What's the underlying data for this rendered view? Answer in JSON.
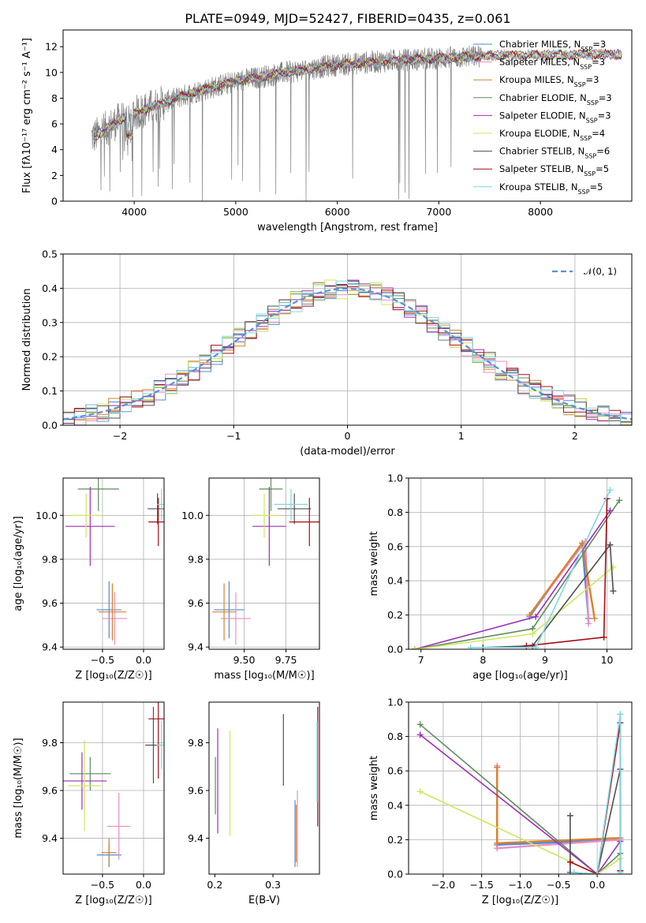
{
  "figure": {
    "title": "PLATE=0949, MJD=52427, FIBERID=0435, z=0.061"
  },
  "colors": {
    "chabrier_miles": "#4f8ad6",
    "salpeter_miles": "#e98ec2",
    "kroupa_miles": "#d9822b",
    "chabrier_elodie": "#5e8c5e",
    "salpeter_elodie": "#9b2fb5",
    "kroupa_elodie": "#cfe65a",
    "chabrier_stelib": "#505050",
    "salpeter_stelib": "#a50f15",
    "kroupa_stelib": "#7fd6e6",
    "data": "#808080",
    "normal": "#5b8fd6"
  },
  "chart_data": [
    {
      "id": "spectrum",
      "type": "line",
      "xlabel": "wavelength [Angstrom, rest frame]",
      "ylabel": "Flux [fλ10⁻¹⁷ erg cm⁻² s⁻¹ A⁻¹]",
      "xlim": [
        3300,
        8900
      ],
      "ylim": [
        0,
        13.3
      ],
      "xticks": [
        4000,
        5000,
        6000,
        7000,
        8000
      ],
      "yticks": [
        0,
        2,
        4,
        6,
        8,
        10,
        12
      ],
      "grid": false,
      "legend_loc": "right",
      "continuum_x": [
        3600,
        3900,
        4200,
        4600,
        5000,
        5500,
        6000,
        6500,
        7000,
        7500,
        8000,
        8500,
        8800
      ],
      "continuum_y": [
        5.0,
        6.5,
        7.4,
        8.5,
        9.3,
        10.0,
        10.6,
        10.9,
        11.1,
        11.3,
        11.35,
        11.4,
        11.4
      ],
      "series": [
        {
          "name": "Chabrier MILES, N",
          "sub": "SSP",
          "n": "=3",
          "color_key": "chabrier_miles"
        },
        {
          "name": "Salpeter MILES, N",
          "sub": "SSP",
          "n": "=3",
          "color_key": "salpeter_miles"
        },
        {
          "name": "Kroupa MILES, N",
          "sub": "SSP",
          "n": "=3",
          "color_key": "kroupa_miles"
        },
        {
          "name": "Chabrier ELODIE, N",
          "sub": "SSP",
          "n": "=3",
          "color_key": "chabrier_elodie"
        },
        {
          "name": "Salpeter ELODIE, N",
          "sub": "SSP",
          "n": "=3",
          "color_key": "salpeter_elodie"
        },
        {
          "name": "Kroupa ELODIE, N",
          "sub": "SSP",
          "n": "=4",
          "color_key": "kroupa_elodie"
        },
        {
          "name": "Chabrier STELIB, N",
          "sub": "SSP",
          "n": "=6",
          "color_key": "chabrier_stelib"
        },
        {
          "name": "Salpeter STELIB, N",
          "sub": "SSP",
          "n": "=5",
          "color_key": "salpeter_stelib"
        },
        {
          "name": "Kroupa STELIB, N",
          "sub": "SSP",
          "n": "=5",
          "color_key": "kroupa_stelib"
        }
      ]
    },
    {
      "id": "residuals",
      "type": "line",
      "xlabel": "(data-model)/error",
      "ylabel": "Normed distribution",
      "xlim": [
        -2.5,
        2.5
      ],
      "ylim": [
        0,
        0.5
      ],
      "xticks": [
        -2,
        -1,
        0,
        1,
        2
      ],
      "yticks": [
        0.0,
        0.1,
        0.2,
        0.3,
        0.4,
        0.5
      ],
      "grid": true,
      "legend_loc": "top-right",
      "normal_label": "𝒩(0, 1)",
      "bin_width": 0.1
    },
    {
      "id": "age_vs_Z",
      "type": "scatter",
      "xlabel": "Z [log₁₀(Z/Z☉)]",
      "ylabel": "age  [log₁₀(age/yr)]",
      "xlim": [
        -0.98,
        0.25
      ],
      "ylim": [
        9.39,
        10.17
      ],
      "xticks": [
        -0.5,
        0.0
      ],
      "yticks": [
        9.4,
        9.6,
        9.8,
        10.0
      ],
      "grid": true,
      "points": [
        {
          "c": "chabrier_miles",
          "x": -0.42,
          "xe": 0.15,
          "y": 9.57,
          "ye": 0.13
        },
        {
          "c": "salpeter_miles",
          "x": -0.35,
          "xe": 0.15,
          "y": 9.53,
          "ye": 0.12
        },
        {
          "c": "kroupa_miles",
          "x": -0.38,
          "xe": 0.17,
          "y": 9.56,
          "ye": 0.13
        },
        {
          "c": "chabrier_elodie",
          "x": -0.55,
          "xe": 0.25,
          "y": 10.12,
          "ye": 0.1
        },
        {
          "c": "salpeter_elodie",
          "x": -0.65,
          "xe": 0.3,
          "y": 9.95,
          "ye": 0.18
        },
        {
          "c": "kroupa_elodie",
          "x": -0.7,
          "xe": 0.2,
          "y": 10.0,
          "ye": 0.1
        },
        {
          "c": "chabrier_stelib",
          "x": 0.17,
          "xe": 0.12,
          "y": 10.03,
          "ye": 0.07
        },
        {
          "c": "salpeter_stelib",
          "x": 0.18,
          "xe": 0.12,
          "y": 9.97,
          "ye": 0.11
        },
        {
          "c": "kroupa_stelib",
          "x": 0.22,
          "xe": 0.06,
          "y": 10.05,
          "ye": 0.07
        }
      ]
    },
    {
      "id": "age_vs_mass",
      "type": "scatter",
      "xlabel": "mass [log₁₀(M/M☉)]",
      "ylabel": "",
      "xlim": [
        9.29,
        9.95
      ],
      "ylim": [
        9.39,
        10.17
      ],
      "xticks": [
        9.25,
        9.5,
        9.75
      ],
      "ytick_labels": [
        "9.4",
        "9.6",
        "9.8",
        "10.0"
      ],
      "yticks": [
        9.4,
        9.6,
        9.8,
        10.0
      ],
      "grid": true,
      "points": [
        {
          "c": "chabrier_miles",
          "x": 9.41,
          "xe": 0.09,
          "y": 9.57,
          "ye": 0.13
        },
        {
          "c": "salpeter_miles",
          "x": 9.45,
          "xe": 0.09,
          "y": 9.53,
          "ye": 0.12
        },
        {
          "c": "kroupa_miles",
          "x": 9.38,
          "xe": 0.07,
          "y": 9.56,
          "ye": 0.13
        },
        {
          "c": "chabrier_elodie",
          "x": 9.66,
          "xe": 0.07,
          "y": 10.12,
          "ye": 0.1
        },
        {
          "c": "salpeter_elodie",
          "x": 9.65,
          "xe": 0.1,
          "y": 9.95,
          "ye": 0.18
        },
        {
          "c": "kroupa_elodie",
          "x": 9.62,
          "xe": 0.08,
          "y": 10.0,
          "ye": 0.1
        },
        {
          "c": "chabrier_stelib",
          "x": 9.8,
          "xe": 0.1,
          "y": 10.03,
          "ye": 0.07
        },
        {
          "c": "salpeter_stelib",
          "x": 9.89,
          "xe": 0.12,
          "y": 9.97,
          "ye": 0.11
        },
        {
          "c": "kroupa_stelib",
          "x": 9.78,
          "xe": 0.1,
          "y": 10.05,
          "ye": 0.07
        }
      ]
    },
    {
      "id": "weight_vs_age",
      "type": "line",
      "xlabel": "age  [log₁₀(age/yr)]",
      "ylabel": "mass weight",
      "xlim": [
        6.8,
        10.4
      ],
      "ylim": [
        0,
        1
      ],
      "xticks": [
        7,
        8,
        9,
        10
      ],
      "yticks": [
        0.0,
        0.2,
        0.4,
        0.6,
        0.8,
        1.0
      ],
      "grid": true,
      "series": [
        {
          "c": "chabrier_miles",
          "x": [
            8.75,
            9.6,
            9.7
          ],
          "y": [
            0.19,
            0.62,
            0.18
          ]
        },
        {
          "c": "salpeter_miles",
          "x": [
            8.75,
            9.65,
            9.7
          ],
          "y": [
            0.2,
            0.63,
            0.15
          ]
        },
        {
          "c": "kroupa_miles",
          "x": [
            8.75,
            9.6,
            9.8
          ],
          "y": [
            0.2,
            0.62,
            0.18
          ]
        },
        {
          "c": "chabrier_elodie",
          "x": [
            6.9,
            8.8,
            10.2
          ],
          "y": [
            0.0,
            0.12,
            0.87
          ]
        },
        {
          "c": "salpeter_elodie",
          "x": [
            6.9,
            8.85,
            10.05
          ],
          "y": [
            0.0,
            0.19,
            0.81
          ]
        },
        {
          "c": "kroupa_elodie",
          "x": [
            6.9,
            8.8,
            10.1
          ],
          "y": [
            0.0,
            0.09,
            0.48
          ]
        },
        {
          "c": "chabrier_stelib",
          "x": [
            8.0,
            8.8,
            10.05,
            10.1
          ],
          "y": [
            0.01,
            0.02,
            0.61,
            0.34
          ]
        },
        {
          "c": "salpeter_stelib",
          "x": [
            8.7,
            9.95,
            10.0
          ],
          "y": [
            0.02,
            0.07,
            0.88
          ]
        },
        {
          "c": "kroupa_stelib",
          "x": [
            7.8,
            8.85,
            10.05
          ],
          "y": [
            0.01,
            0.01,
            0.93
          ]
        }
      ]
    },
    {
      "id": "mass_vs_Z",
      "type": "scatter",
      "xlabel": "Z [log₁₀(Z/Z☉)]",
      "ylabel": "mass [log₁₀(M/M☉)]",
      "xlim": [
        -0.98,
        0.25
      ],
      "ylim": [
        9.25,
        9.97
      ],
      "xticks": [
        -0.5,
        0.0
      ],
      "yticks": [
        9.4,
        9.6,
        9.8
      ],
      "grid": true,
      "points": [
        {
          "c": "chabrier_miles",
          "x": -0.42,
          "xe": 0.15,
          "y": 9.33,
          "ye": 0.05
        },
        {
          "c": "salpeter_miles",
          "x": -0.3,
          "xe": 0.14,
          "y": 9.45,
          "ye": 0.14
        },
        {
          "c": "kroupa_miles",
          "x": -0.42,
          "xe": 0.09,
          "y": 9.34,
          "ye": 0.06
        },
        {
          "c": "chabrier_elodie",
          "x": -0.65,
          "xe": 0.25,
          "y": 9.67,
          "ye": 0.07
        },
        {
          "c": "salpeter_elodie",
          "x": -0.75,
          "xe": 0.3,
          "y": 9.64,
          "ye": 0.12
        },
        {
          "c": "kroupa_elodie",
          "x": -0.72,
          "xe": 0.2,
          "y": 9.62,
          "ye": 0.19
        },
        {
          "c": "chabrier_stelib",
          "x": 0.12,
          "xe": 0.1,
          "y": 9.79,
          "ye": 0.16
        },
        {
          "c": "salpeter_stelib",
          "x": 0.18,
          "xe": 0.12,
          "y": 9.9,
          "ye": 0.25
        },
        {
          "c": "kroupa_stelib",
          "x": 0.22,
          "xe": 0.06,
          "y": 9.79,
          "ye": 0.1
        }
      ]
    },
    {
      "id": "mass_vs_ebv",
      "type": "scatter",
      "xlabel": "E(B-V)",
      "ylabel": "",
      "xlim": [
        0.19,
        0.38
      ],
      "ylim": [
        9.25,
        9.97
      ],
      "xticks": [
        0.2,
        0.3
      ],
      "yticks": [
        9.4,
        9.6,
        9.8
      ],
      "grid": false,
      "points": [
        {
          "c": "chabrier_miles",
          "x": 0.338,
          "ye": 0.14,
          "y": 9.42
        },
        {
          "c": "salpeter_miles",
          "x": 0.342,
          "ye": 0.16,
          "y": 9.44
        },
        {
          "c": "kroupa_miles",
          "x": 0.34,
          "ye": 0.12,
          "y": 9.42
        },
        {
          "c": "chabrier_elodie",
          "x": 0.201,
          "ye": 0.12,
          "y": 9.62
        },
        {
          "c": "salpeter_elodie",
          "x": 0.205,
          "ye": 0.22,
          "y": 9.64
        },
        {
          "c": "kroupa_elodie",
          "x": 0.226,
          "ye": 0.22,
          "y": 9.63
        },
        {
          "c": "chabrier_stelib",
          "x": 0.318,
          "ye": 0.15,
          "y": 9.77
        },
        {
          "c": "salpeter_stelib",
          "x": 0.377,
          "ye": 0.25,
          "y": 9.7
        },
        {
          "c": "kroupa_stelib",
          "x": 0.376,
          "ye": 0.17,
          "y": 9.72
        }
      ]
    },
    {
      "id": "weight_vs_Z",
      "type": "line",
      "xlabel": "Z [log₁₀(Z/Z☉)]",
      "ylabel": "mass weight",
      "xlim": [
        -2.45,
        0.45
      ],
      "ylim": [
        0,
        1
      ],
      "xticks": [
        -2.0,
        -1.5,
        -1.0,
        -0.5,
        0.0
      ],
      "yticks": [
        0.0,
        0.2,
        0.4,
        0.6,
        0.8,
        1.0
      ],
      "grid": true,
      "series": [
        {
          "c": "chabrier_miles",
          "x": [
            -1.3,
            -1.3,
            0.3
          ],
          "y": [
            0.62,
            0.17,
            0.2
          ]
        },
        {
          "c": "salpeter_miles",
          "x": [
            -1.3,
            -1.3,
            0.3
          ],
          "y": [
            0.63,
            0.15,
            0.2
          ]
        },
        {
          "c": "kroupa_miles",
          "x": [
            -1.3,
            -1.3,
            0.3
          ],
          "y": [
            0.62,
            0.18,
            0.21
          ]
        },
        {
          "c": "chabrier_elodie",
          "x": [
            -2.3,
            0.0,
            0.3
          ],
          "y": [
            0.87,
            0.0,
            0.12
          ]
        },
        {
          "c": "salpeter_elodie",
          "x": [
            -2.3,
            0.0,
            0.3
          ],
          "y": [
            0.81,
            0.0,
            0.19
          ]
        },
        {
          "c": "kroupa_elodie",
          "x": [
            -2.3,
            0.0,
            0.3
          ],
          "y": [
            0.48,
            0.0,
            0.09
          ]
        },
        {
          "c": "chabrier_stelib",
          "x": [
            -0.35,
            -0.35,
            0.0,
            0.3,
            0.3
          ],
          "y": [
            0.34,
            0.01,
            0.0,
            0.61,
            0.02
          ]
        },
        {
          "c": "salpeter_stelib",
          "x": [
            -0.35,
            0.0,
            0.3,
            0.3
          ],
          "y": [
            0.07,
            0.0,
            0.88,
            0.02
          ]
        },
        {
          "c": "kroupa_stelib",
          "x": [
            -0.3,
            0.0,
            0.3,
            0.3
          ],
          "y": [
            0.01,
            0.0,
            0.93,
            0.01
          ]
        }
      ]
    }
  ]
}
